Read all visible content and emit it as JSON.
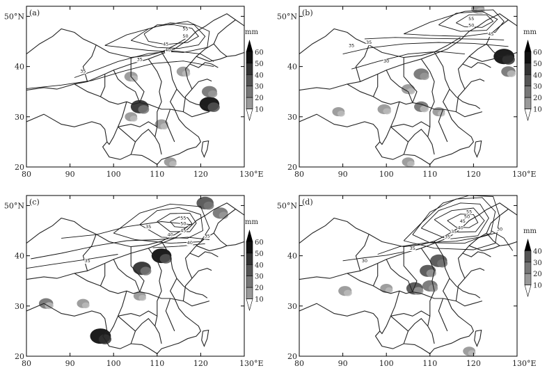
{
  "panels": [
    {
      "label": "(a)",
      "lat_ticks": [
        "50°N",
        "40",
        "30",
        "20"
      ],
      "lon_ticks": [
        "80",
        "90",
        "100",
        "110",
        "120",
        "130°E"
      ],
      "contour_labels": [
        "55",
        "50",
        "45",
        "40",
        "35",
        "35"
      ],
      "colorbar": {
        "unit": "mm",
        "levels": [
          "60",
          "50",
          "40",
          "30",
          "20",
          "10"
        ]
      },
      "blobs": [
        {
          "lon": 106,
          "lat": 32,
          "value": 45
        },
        {
          "lon": 122,
          "lat": 32.5,
          "value": 55
        },
        {
          "lon": 122,
          "lat": 35,
          "value": 30
        },
        {
          "lon": 104,
          "lat": 38,
          "value": 20
        },
        {
          "lon": 111,
          "lat": 28.5,
          "value": 20
        },
        {
          "lon": 104,
          "lat": 30,
          "value": 15
        },
        {
          "lon": 116,
          "lat": 39,
          "value": 20
        },
        {
          "lon": 113,
          "lat": 21,
          "value": 15
        }
      ]
    },
    {
      "label": "(b)",
      "lat_ticks": [
        "50°N",
        "40",
        "30",
        "20"
      ],
      "lon_ticks": [
        "80",
        "90",
        "100",
        "110",
        "120",
        "130°E"
      ],
      "contour_labels": [
        "55",
        "50",
        "45",
        "35",
        "35",
        "30"
      ],
      "colorbar": {
        "unit": "mm",
        "levels": [
          "60",
          "50",
          "40",
          "30",
          "20",
          "10"
        ]
      },
      "blobs": [
        {
          "lon": 127,
          "lat": 42,
          "value": 60
        },
        {
          "lon": 128,
          "lat": 39,
          "value": 25
        },
        {
          "lon": 108,
          "lat": 38.5,
          "value": 30
        },
        {
          "lon": 105,
          "lat": 35.5,
          "value": 20
        },
        {
          "lon": 108,
          "lat": 32,
          "value": 25
        },
        {
          "lon": 99.5,
          "lat": 31.5,
          "value": 20
        },
        {
          "lon": 89,
          "lat": 31,
          "value": 15
        },
        {
          "lon": 121,
          "lat": 51.5,
          "value": 20
        },
        {
          "lon": 105,
          "lat": 21,
          "value": 15
        },
        {
          "lon": 112,
          "lat": 31,
          "value": 15
        }
      ]
    },
    {
      "label": "(c)",
      "lat_ticks": [
        "50°N",
        "40",
        "30",
        "20"
      ],
      "lon_ticks": [
        "80",
        "90",
        "100",
        "110",
        "120",
        "130°E"
      ],
      "contour_labels": [
        "55",
        "50",
        "45",
        "40",
        "40",
        "35",
        "35",
        "35"
      ],
      "colorbar": {
        "unit": "mm",
        "levels": [
          "60",
          "50",
          "40",
          "30",
          "20",
          "10"
        ]
      },
      "blobs": [
        {
          "lon": 111,
          "lat": 40,
          "value": 55
        },
        {
          "lon": 106.5,
          "lat": 37.5,
          "value": 45
        },
        {
          "lon": 97,
          "lat": 24,
          "value": 60
        },
        {
          "lon": 121,
          "lat": 50.5,
          "value": 40
        },
        {
          "lon": 124.5,
          "lat": 48.5,
          "value": 30
        },
        {
          "lon": 84.5,
          "lat": 30.5,
          "value": 25
        },
        {
          "lon": 93,
          "lat": 30.5,
          "value": 15
        },
        {
          "lon": 106,
          "lat": 32,
          "value": 15
        }
      ]
    },
    {
      "label": "(d)",
      "lat_ticks": [
        "50°N",
        "40",
        "30",
        "20"
      ],
      "lon_ticks": [
        "80",
        "90",
        "100",
        "110",
        "120",
        "130°E"
      ],
      "contour_labels": [
        "55",
        "50",
        "45",
        "40",
        "35",
        "30",
        "35",
        "35",
        "30"
      ],
      "colorbar": {
        "unit": "mm",
        "levels": [
          "40",
          "30",
          "20",
          "10"
        ]
      },
      "blobs": [
        {
          "lon": 112,
          "lat": 39,
          "value": 40
        },
        {
          "lon": 109.5,
          "lat": 37,
          "value": 35
        },
        {
          "lon": 106.5,
          "lat": 33.5,
          "value": 38
        },
        {
          "lon": 110,
          "lat": 34,
          "value": 30
        },
        {
          "lon": 90.5,
          "lat": 33,
          "value": 20
        },
        {
          "lon": 100,
          "lat": 33.5,
          "value": 15
        },
        {
          "lon": 119,
          "lat": 21,
          "value": 15
        }
      ]
    }
  ]
}
